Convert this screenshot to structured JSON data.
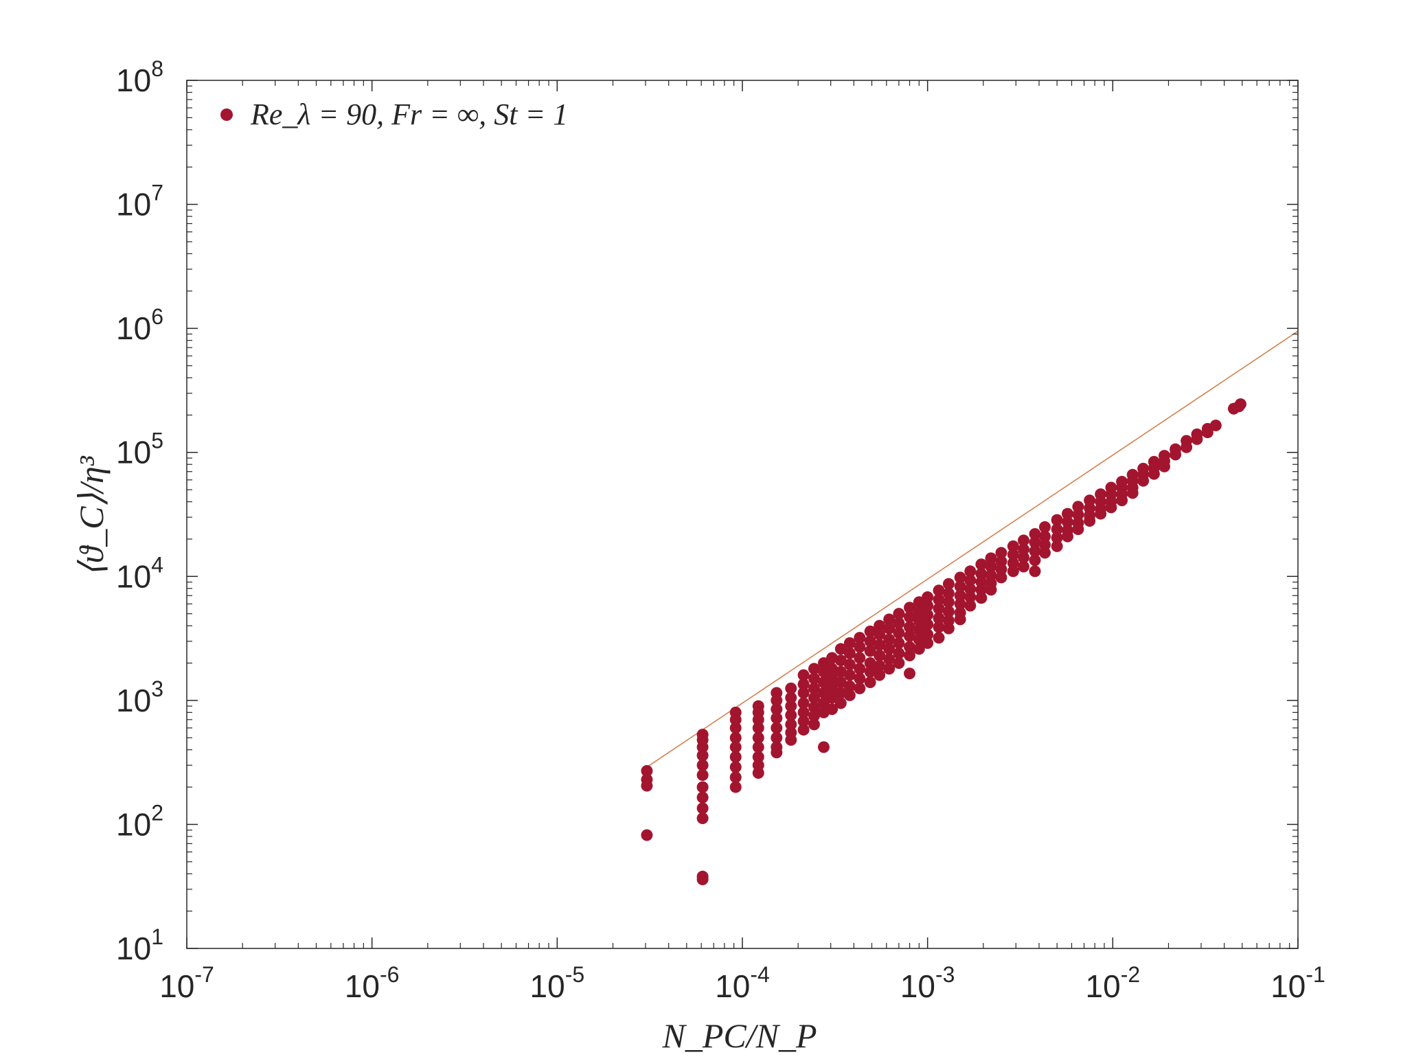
{
  "chart_data": {
    "type": "scatter",
    "title": "",
    "xlabel": "N_PC/N_P",
    "ylabel": "⟨ϑ_C⟩/η³",
    "xscale": "log",
    "yscale": "log",
    "xlim": [
      1e-07,
      0.1
    ],
    "ylim": [
      10,
      100000000
    ],
    "x_ticks": [
      {
        "mant": "10",
        "exp": "-7"
      },
      {
        "mant": "10",
        "exp": "-6"
      },
      {
        "mant": "10",
        "exp": "-5"
      },
      {
        "mant": "10",
        "exp": "-4"
      },
      {
        "mant": "10",
        "exp": "-3"
      },
      {
        "mant": "10",
        "exp": "-2"
      },
      {
        "mant": "10",
        "exp": "-1"
      }
    ],
    "y_ticks": [
      {
        "mant": "10",
        "exp": "1"
      },
      {
        "mant": "10",
        "exp": "2"
      },
      {
        "mant": "10",
        "exp": "3"
      },
      {
        "mant": "10",
        "exp": "4"
      },
      {
        "mant": "10",
        "exp": "5"
      },
      {
        "mant": "10",
        "exp": "6"
      },
      {
        "mant": "10",
        "exp": "7"
      },
      {
        "mant": "10",
        "exp": "8"
      }
    ],
    "grid": false,
    "legend_position": "top-left",
    "series": [
      {
        "name": "Re_λ = 90, Fr = ∞, St = 1",
        "color": "#a3152f",
        "marker": "circle",
        "points": [
          [
            3.05e-05,
            270
          ],
          [
            3.05e-05,
            230
          ],
          [
            3.05e-05,
            205
          ],
          [
            3.05e-05,
            82
          ],
          [
            6.1e-05,
            530
          ],
          [
            6.1e-05,
            480
          ],
          [
            6.1e-05,
            420
          ],
          [
            6.1e-05,
            360
          ],
          [
            6.1e-05,
            300
          ],
          [
            6.1e-05,
            250
          ],
          [
            6.1e-05,
            200
          ],
          [
            6.1e-05,
            165
          ],
          [
            6.1e-05,
            135
          ],
          [
            6.1e-05,
            112
          ],
          [
            6.1e-05,
            38
          ],
          [
            6.1e-05,
            36
          ],
          [
            9.2e-05,
            800
          ],
          [
            9.2e-05,
            700
          ],
          [
            9.2e-05,
            600
          ],
          [
            9.2e-05,
            500
          ],
          [
            9.2e-05,
            420
          ],
          [
            9.2e-05,
            350
          ],
          [
            9.2e-05,
            290
          ],
          [
            9.2e-05,
            240
          ],
          [
            9.2e-05,
            200
          ],
          [
            0.000122,
            900
          ],
          [
            0.000122,
            800
          ],
          [
            0.000122,
            700
          ],
          [
            0.000122,
            600
          ],
          [
            0.000122,
            500
          ],
          [
            0.000122,
            420
          ],
          [
            0.000122,
            350
          ],
          [
            0.000122,
            300
          ],
          [
            0.000122,
            260
          ],
          [
            0.000153,
            1150
          ],
          [
            0.000153,
            1000
          ],
          [
            0.000153,
            850
          ],
          [
            0.000153,
            720
          ],
          [
            0.000153,
            600
          ],
          [
            0.000153,
            500
          ],
          [
            0.000153,
            420
          ],
          [
            0.000153,
            380
          ],
          [
            0.000183,
            1250
          ],
          [
            0.000183,
            1050
          ],
          [
            0.000183,
            900
          ],
          [
            0.000183,
            760
          ],
          [
            0.000183,
            640
          ],
          [
            0.000183,
            550
          ],
          [
            0.000183,
            480
          ],
          [
            0.000214,
            1600
          ],
          [
            0.000214,
            1350
          ],
          [
            0.000214,
            1150
          ],
          [
            0.000214,
            950
          ],
          [
            0.000214,
            800
          ],
          [
            0.000214,
            680
          ],
          [
            0.000214,
            580
          ],
          [
            0.000244,
            1800
          ],
          [
            0.000244,
            1500
          ],
          [
            0.000244,
            1250
          ],
          [
            0.000244,
            1050
          ],
          [
            0.000244,
            880
          ],
          [
            0.000244,
            750
          ],
          [
            0.000244,
            640
          ],
          [
            0.000275,
            2000
          ],
          [
            0.000275,
            1700
          ],
          [
            0.000275,
            1400
          ],
          [
            0.000275,
            1150
          ],
          [
            0.000275,
            950
          ],
          [
            0.000275,
            800
          ],
          [
            0.000275,
            420
          ],
          [
            0.000305,
            2200
          ],
          [
            0.000305,
            1800
          ],
          [
            0.000305,
            1500
          ],
          [
            0.000305,
            1250
          ],
          [
            0.000305,
            1050
          ],
          [
            0.000305,
            850
          ],
          [
            0.00034,
            2600
          ],
          [
            0.00034,
            2100
          ],
          [
            0.00034,
            1700
          ],
          [
            0.00034,
            1400
          ],
          [
            0.00034,
            1150
          ],
          [
            0.00034,
            950
          ],
          [
            0.00038,
            2900
          ],
          [
            0.00038,
            2400
          ],
          [
            0.00038,
            1950
          ],
          [
            0.00038,
            1600
          ],
          [
            0.00038,
            1300
          ],
          [
            0.00038,
            1100
          ],
          [
            0.00043,
            3200
          ],
          [
            0.00043,
            2700
          ],
          [
            0.00043,
            2200
          ],
          [
            0.00043,
            1800
          ],
          [
            0.00043,
            1500
          ],
          [
            0.00043,
            1250
          ],
          [
            0.00049,
            3600
          ],
          [
            0.00049,
            3000
          ],
          [
            0.00049,
            2500
          ],
          [
            0.00049,
            2000
          ],
          [
            0.00049,
            1700
          ],
          [
            0.00049,
            1400
          ],
          [
            0.00055,
            4000
          ],
          [
            0.00055,
            3400
          ],
          [
            0.00055,
            2800
          ],
          [
            0.00055,
            2300
          ],
          [
            0.00055,
            1900
          ],
          [
            0.00055,
            1600
          ],
          [
            0.00062,
            4500
          ],
          [
            0.00062,
            3800
          ],
          [
            0.00062,
            3100
          ],
          [
            0.00062,
            2600
          ],
          [
            0.00062,
            2150
          ],
          [
            0.00062,
            1800
          ],
          [
            0.0007,
            5000
          ],
          [
            0.0007,
            4200
          ],
          [
            0.0007,
            3500
          ],
          [
            0.0007,
            2900
          ],
          [
            0.0007,
            2400
          ],
          [
            0.0007,
            2000
          ],
          [
            0.0008,
            5600
          ],
          [
            0.0008,
            4700
          ],
          [
            0.0008,
            3900
          ],
          [
            0.0008,
            3300
          ],
          [
            0.0008,
            2700
          ],
          [
            0.0008,
            2300
          ],
          [
            0.0008,
            1650
          ],
          [
            0.0009,
            6200
          ],
          [
            0.0009,
            5200
          ],
          [
            0.0009,
            4400
          ],
          [
            0.0009,
            3700
          ],
          [
            0.0009,
            3100
          ],
          [
            0.0009,
            2600
          ],
          [
            0.001,
            6800
          ],
          [
            0.001,
            5800
          ],
          [
            0.001,
            4900
          ],
          [
            0.001,
            4100
          ],
          [
            0.001,
            3400
          ],
          [
            0.001,
            2900
          ],
          [
            0.00115,
            7700
          ],
          [
            0.00115,
            6500
          ],
          [
            0.00115,
            5500
          ],
          [
            0.00115,
            4600
          ],
          [
            0.00115,
            3900
          ],
          [
            0.00115,
            3200
          ],
          [
            0.0013,
            8700
          ],
          [
            0.0013,
            7300
          ],
          [
            0.0013,
            6200
          ],
          [
            0.0013,
            5200
          ],
          [
            0.0013,
            4400
          ],
          [
            0.0013,
            3800
          ],
          [
            0.0015,
            9800
          ],
          [
            0.0015,
            8300
          ],
          [
            0.0015,
            7000
          ],
          [
            0.0015,
            6000
          ],
          [
            0.0015,
            5100
          ],
          [
            0.0015,
            4500
          ],
          [
            0.0017,
            11000
          ],
          [
            0.0017,
            9300
          ],
          [
            0.0017,
            7900
          ],
          [
            0.0017,
            6800
          ],
          [
            0.0017,
            5800
          ],
          [
            0.00195,
            12500
          ],
          [
            0.00195,
            10500
          ],
          [
            0.00195,
            9000
          ],
          [
            0.00195,
            7800
          ],
          [
            0.00195,
            6700
          ],
          [
            0.0022,
            14000
          ],
          [
            0.0022,
            12000
          ],
          [
            0.0022,
            10200
          ],
          [
            0.0022,
            8800
          ],
          [
            0.0022,
            7800
          ],
          [
            0.0025,
            15500
          ],
          [
            0.0025,
            13200
          ],
          [
            0.0025,
            11400
          ],
          [
            0.0025,
            9800
          ],
          [
            0.0029,
            17500
          ],
          [
            0.0029,
            15000
          ],
          [
            0.0029,
            12800
          ],
          [
            0.0029,
            11000
          ],
          [
            0.0033,
            19500
          ],
          [
            0.0033,
            16500
          ],
          [
            0.0033,
            14200
          ],
          [
            0.0033,
            12000
          ],
          [
            0.0038,
            22000
          ],
          [
            0.0038,
            18800
          ],
          [
            0.0038,
            16000
          ],
          [
            0.0038,
            13500
          ],
          [
            0.0038,
            11000
          ],
          [
            0.0043,
            25000
          ],
          [
            0.0043,
            21000
          ],
          [
            0.0043,
            18000
          ],
          [
            0.0043,
            15500
          ],
          [
            0.005,
            28500
          ],
          [
            0.005,
            24000
          ],
          [
            0.005,
            20500
          ],
          [
            0.005,
            17500
          ],
          [
            0.0057,
            32000
          ],
          [
            0.0057,
            27500
          ],
          [
            0.0057,
            23500
          ],
          [
            0.0057,
            21000
          ],
          [
            0.0065,
            36500
          ],
          [
            0.0065,
            31500
          ],
          [
            0.0065,
            27000
          ],
          [
            0.0065,
            24000
          ],
          [
            0.0075,
            41000
          ],
          [
            0.0075,
            35500
          ],
          [
            0.0075,
            31000
          ],
          [
            0.0075,
            28000
          ],
          [
            0.0086,
            46000
          ],
          [
            0.0086,
            40000
          ],
          [
            0.0086,
            35000
          ],
          [
            0.0086,
            32000
          ],
          [
            0.0098,
            52000
          ],
          [
            0.0098,
            46000
          ],
          [
            0.0098,
            40000
          ],
          [
            0.0098,
            36000
          ],
          [
            0.0112,
            58000
          ],
          [
            0.0112,
            52000
          ],
          [
            0.0112,
            46000
          ],
          [
            0.0112,
            41000
          ],
          [
            0.0128,
            66000
          ],
          [
            0.0128,
            59000
          ],
          [
            0.0128,
            52000
          ],
          [
            0.0128,
            47000
          ],
          [
            0.0146,
            74000
          ],
          [
            0.0146,
            66000
          ],
          [
            0.0146,
            59000
          ],
          [
            0.0167,
            84000
          ],
          [
            0.0167,
            75000
          ],
          [
            0.0167,
            67000
          ],
          [
            0.019,
            94000
          ],
          [
            0.019,
            85000
          ],
          [
            0.019,
            77000
          ],
          [
            0.0218,
            106000
          ],
          [
            0.0218,
            96000
          ],
          [
            0.025,
            124000
          ],
          [
            0.025,
            110000
          ],
          [
            0.0285,
            140000
          ],
          [
            0.0285,
            128000
          ],
          [
            0.0325,
            155000
          ],
          [
            0.0325,
            145000
          ],
          [
            0.036,
            165000
          ],
          [
            0.045,
            225000
          ],
          [
            0.048,
            235000
          ],
          [
            0.049,
            245000
          ]
        ]
      },
      {
        "name": "",
        "type": "line",
        "color": "#d4804f",
        "points": [
          [
            3.05e-05,
            290
          ],
          [
            0.1,
            950000
          ]
        ]
      }
    ]
  }
}
